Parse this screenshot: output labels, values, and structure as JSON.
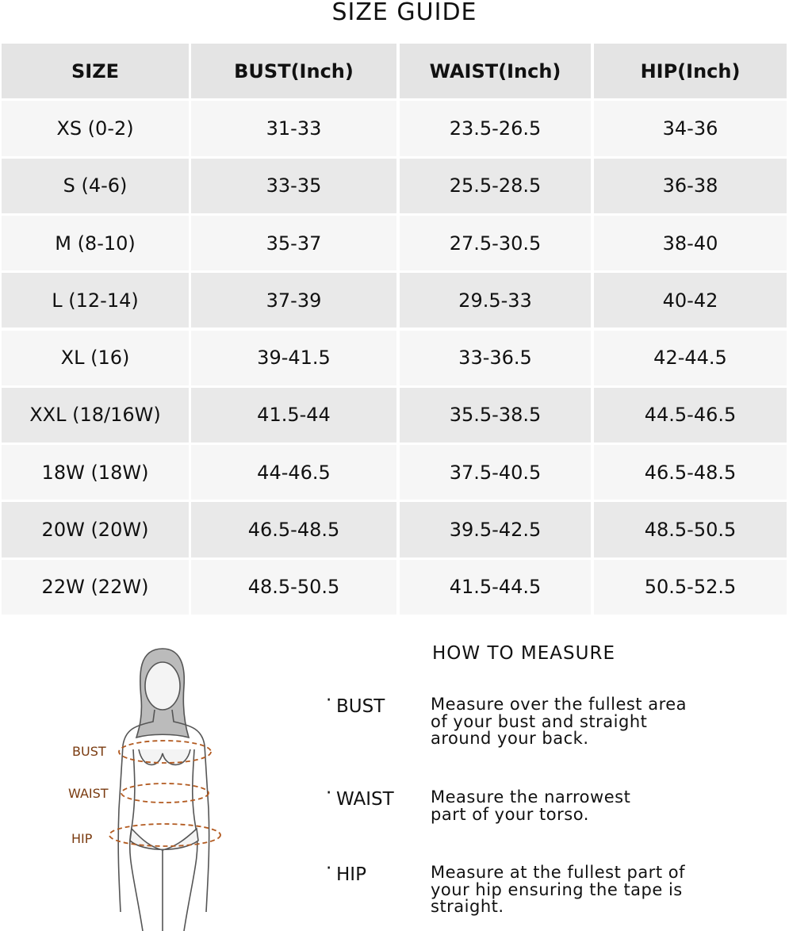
{
  "title": "SIZE GUIDE",
  "table": {
    "header": [
      "SIZE",
      "BUST(Inch)",
      "WAIST(Inch)",
      "HIP(Inch)"
    ],
    "rows": [
      [
        "XS (0-2)",
        "31-33",
        "23.5-26.5",
        "34-36"
      ],
      [
        "S (4-6)",
        "33-35",
        "25.5-28.5",
        "36-38"
      ],
      [
        "M (8-10)",
        "35-37",
        "27.5-30.5",
        "38-40"
      ],
      [
        "L (12-14)",
        "37-39",
        "29.5-33",
        "40-42"
      ],
      [
        "XL (16)",
        "39-41.5",
        "33-36.5",
        "42-44.5"
      ],
      [
        "XXL (18/16W)",
        "41.5-44",
        "35.5-38.5",
        "44.5-46.5"
      ],
      [
        "18W (18W)",
        "44-46.5",
        "37.5-40.5",
        "46.5-48.5"
      ],
      [
        "20W (20W)",
        "46.5-48.5",
        "39.5-42.5",
        "48.5-50.5"
      ],
      [
        "22W (22W)",
        "48.5-50.5",
        "41.5-44.5",
        "50.5-52.5"
      ]
    ]
  },
  "figure": {
    "labels": [
      "BUST",
      "WAIST",
      "HIP"
    ]
  },
  "measure": {
    "title": "HOW TO MEASURE",
    "items": [
      {
        "label": "BUST",
        "lines": [
          "Measure over the fullest area",
          "of your bust and straight",
          "around your back."
        ]
      },
      {
        "label": "WAIST",
        "lines": [
          "Measure the narrowest",
          "part of your torso."
        ]
      },
      {
        "label": "HIP",
        "lines": [
          "Measure at the fullest part of",
          "your hip ensuring the tape is",
          "straight."
        ]
      }
    ]
  }
}
